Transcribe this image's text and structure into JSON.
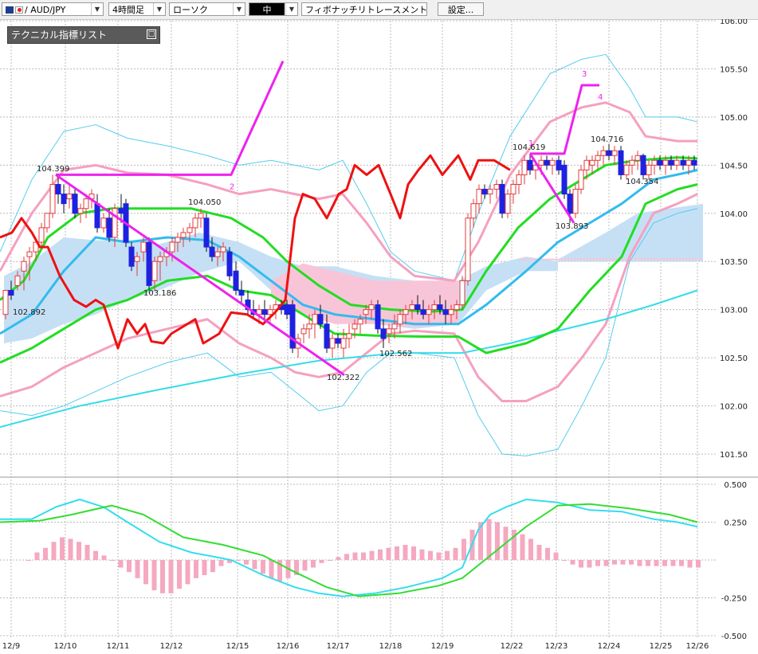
{
  "toolbar": {
    "symbol": "AUD/JPY",
    "timeframe": "4時間足",
    "chart_style": "ローソク",
    "size": "中",
    "drawing_tool": "フィボナッチリトレースメント",
    "settings_label": "設定..."
  },
  "indicator_list": {
    "title": "テクニカル指標リスト"
  },
  "colors": {
    "bull_candle": "#e23b3b",
    "bear_candle": "#1d22e0",
    "bollinger_outer": "#55ccee",
    "bollinger_inner": "#f5a0c0",
    "moving_average_green": "#22dd22",
    "moving_average_blue": "#33bbee",
    "long_ma": "#33dde8",
    "red_line": "#ee1111",
    "elliott_wave": "#ee22ee",
    "cloud_bull": "#c5e0f5",
    "cloud_bear": "#f8c5d8",
    "macd_line": "#33ddee",
    "signal_line": "#33dd33",
    "histogram": "#f5a8c0"
  },
  "chart_data": {
    "type": "candlestick",
    "x_tick_labels": [
      "12/9",
      "12/10",
      "12/11",
      "12/12",
      "12/15",
      "12/16",
      "12/17",
      "12/18",
      "12/19",
      "12/22",
      "12/23",
      "12/24",
      "12/25",
      "12/26"
    ],
    "price_axis": {
      "ylim": [
        101.5,
        106.0
      ],
      "ticks": [
        "106.00",
        "105.50",
        "105.00",
        "104.50",
        "104.00",
        "103.50",
        "103.00",
        "102.50",
        "102.00",
        "101.50"
      ]
    },
    "macd_axis": {
      "ylim": [
        -0.5,
        0.5
      ],
      "ticks": [
        "0.500",
        "0.250",
        "-0.250",
        "-0.500"
      ]
    },
    "price_annotations": [
      "102.892",
      "104.399",
      "103.186",
      "104.050",
      "102.322",
      "102.562",
      "104.619",
      "103.893",
      "104.716",
      "104.354"
    ],
    "elliott_wave_labels": [
      "2",
      "1",
      "3",
      "4"
    ]
  }
}
